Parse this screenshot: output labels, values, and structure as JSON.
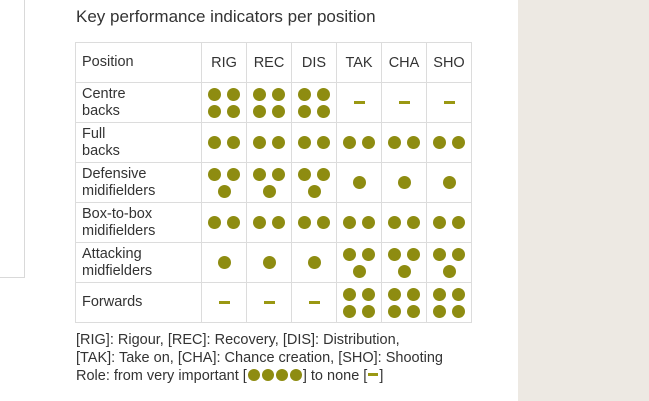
{
  "title": "Key performance indicators per position",
  "table": {
    "position_header": "Position",
    "kpis": [
      "RIG",
      "REC",
      "DIS",
      "TAK",
      "CHA",
      "SHO"
    ],
    "rows": [
      {
        "label": "Centre\nbacks",
        "values": [
          4,
          4,
          4,
          0,
          0,
          0
        ]
      },
      {
        "label": "Full\nbacks",
        "values": [
          2,
          2,
          2,
          2,
          2,
          2
        ]
      },
      {
        "label": "Defensive\nmidifielders",
        "values": [
          3,
          3,
          3,
          1,
          1,
          1
        ]
      },
      {
        "label": "Box-to-box\nmidifielders",
        "values": [
          2,
          2,
          2,
          2,
          2,
          2
        ]
      },
      {
        "label": "Attacking\nmidfielders",
        "values": [
          1,
          1,
          1,
          3,
          3,
          3
        ]
      },
      {
        "label": "Forwards",
        "values": [
          0,
          0,
          0,
          4,
          4,
          4
        ]
      }
    ]
  },
  "legend": {
    "line1": "[RIG]: Rigour, [REC]: Recovery, [DIS]: Distribution,",
    "line2": "[TAK]: Take on, [CHA]: Chance creation, [SHO]: Shooting",
    "role_prefix": "Role: from very important [",
    "role_middle": "] to none [",
    "role_suffix": "]"
  },
  "colors": {
    "dot": "#8e8c11",
    "dash": "#9a9813",
    "border": "#dcdcdc",
    "side_panel": "#ede9e3"
  }
}
